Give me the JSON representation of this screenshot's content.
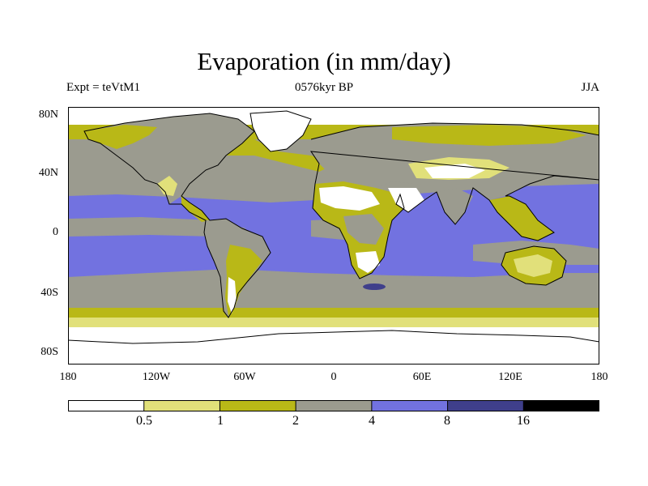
{
  "title": "Evaporation (in mm/day)",
  "subtitle_left": "Expt = teVtM1",
  "subtitle_center": "0576kyr BP",
  "subtitle_right": "JJA",
  "y_ticks": [
    "80N",
    "40N",
    "0",
    "40S",
    "80S"
  ],
  "x_ticks": [
    "180",
    "120W",
    "60W",
    "0",
    "60E",
    "120E",
    "180"
  ],
  "colorbar": {
    "levels": [
      "0.5",
      "1",
      "2",
      "4",
      "8",
      "16"
    ],
    "colors": [
      "#ffffff",
      "#e1e07a",
      "#b9b817",
      "#9b9b8f",
      "#7272e0",
      "#3f3f8b",
      "#000000"
    ]
  }
}
